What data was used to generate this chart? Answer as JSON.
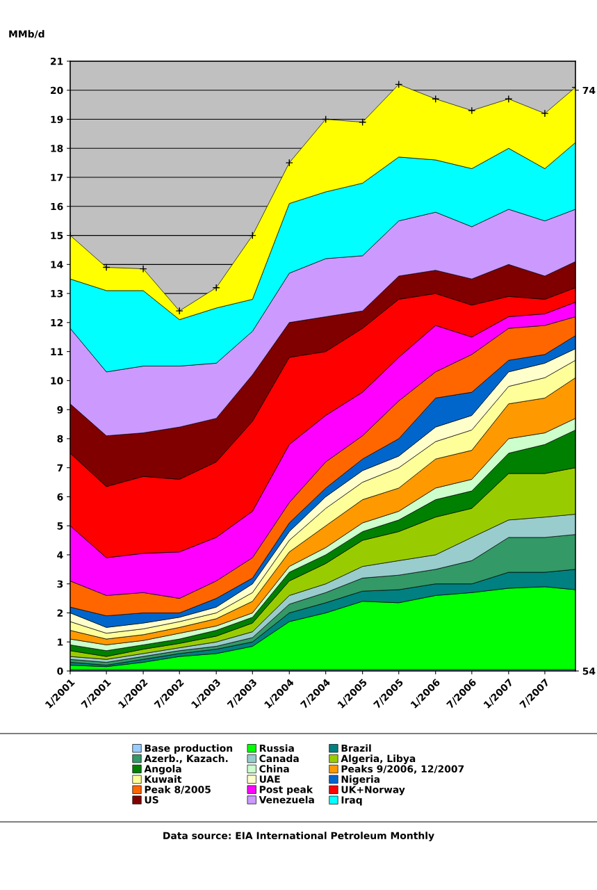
{
  "chart_data": {
    "type": "area",
    "stacked": true,
    "ylabel": "MMb/d",
    "x": [
      "2001-01",
      "2001-07",
      "2002-01",
      "2002-07",
      "2003-01",
      "2003-07",
      "2004-01",
      "2004-07",
      "2005-01",
      "2005-07",
      "2006-01",
      "2006-07",
      "2007-01",
      "2007-07",
      "2007-12"
    ],
    "xlim": [
      "2001-01",
      "2007-12"
    ],
    "xticks": [
      {
        "value": "2001-01",
        "label": "1/2001"
      },
      {
        "value": "2001-07",
        "label": "7/2001"
      },
      {
        "value": "2002-01",
        "label": "1/2002"
      },
      {
        "value": "2002-07",
        "label": "7/2002"
      },
      {
        "value": "2003-01",
        "label": "1/2003"
      },
      {
        "value": "2003-07",
        "label": "7/2003"
      },
      {
        "value": "2004-01",
        "label": "1/2004"
      },
      {
        "value": "2004-07",
        "label": "7/2004"
      },
      {
        "value": "2005-01",
        "label": "1/2005"
      },
      {
        "value": "2005-07",
        "label": "7/2005"
      },
      {
        "value": "2006-01",
        "label": "1/2006"
      },
      {
        "value": "2006-07",
        "label": "7/2006"
      },
      {
        "value": "2007-01",
        "label": "1/2007"
      },
      {
        "value": "2007-07",
        "label": "7/2007"
      }
    ],
    "ylim": [
      0,
      21
    ],
    "yticks": [
      0,
      1,
      2,
      3,
      4,
      5,
      6,
      7,
      8,
      9,
      10,
      11,
      12,
      13,
      14,
      15,
      16,
      17,
      18,
      19,
      20,
      21
    ],
    "y2lim": [
      54,
      75
    ],
    "y2ticks": [
      54,
      74
    ],
    "grid": "y",
    "legend": "bottom",
    "series": [
      {
        "name": "Base production",
        "color": "#99ccff",
        "values": [
          0.05,
          0.05,
          0.05,
          0.05,
          0.05,
          0.05,
          0.05,
          0.05,
          0.05,
          0.05,
          0.05,
          0.05,
          0.05,
          0.05,
          0.05
        ]
      },
      {
        "name": "Russia",
        "color": "#00ff00",
        "values": [
          0.15,
          0.1,
          0.25,
          0.45,
          0.55,
          0.8,
          1.65,
          1.95,
          2.35,
          2.3,
          2.55,
          2.65,
          2.8,
          2.85,
          2.75
        ]
      },
      {
        "name": "Brazil",
        "color": "#008080",
        "values": [
          0.1,
          0.05,
          0.1,
          0.1,
          0.15,
          0.15,
          0.3,
          0.35,
          0.35,
          0.45,
          0.4,
          0.3,
          0.55,
          0.5,
          0.7
        ]
      },
      {
        "name": "Azerb., Kazach.",
        "color": "#339966",
        "values": [
          0.1,
          0.1,
          0.1,
          0.1,
          0.1,
          0.15,
          0.3,
          0.35,
          0.45,
          0.5,
          0.5,
          0.8,
          1.2,
          1.2,
          1.2
        ]
      },
      {
        "name": "Canada",
        "color": "#99cccc",
        "values": [
          0.1,
          0.1,
          0.1,
          0.1,
          0.15,
          0.2,
          0.3,
          0.3,
          0.4,
          0.5,
          0.5,
          0.8,
          0.6,
          0.7,
          0.7
        ]
      },
      {
        "name": "Algeria, Libya",
        "color": "#99cc00",
        "values": [
          0.2,
          0.1,
          0.15,
          0.15,
          0.2,
          0.3,
          0.5,
          0.7,
          0.9,
          1.0,
          1.3,
          1.0,
          1.6,
          1.5,
          1.6
        ]
      },
      {
        "name": "Angola",
        "color": "#008000",
        "values": [
          0.2,
          0.2,
          0.15,
          0.15,
          0.2,
          0.2,
          0.3,
          0.3,
          0.3,
          0.4,
          0.6,
          0.6,
          0.7,
          1.0,
          1.3
        ]
      },
      {
        "name": "China",
        "color": "#ccffcc",
        "values": [
          0.2,
          0.2,
          0.15,
          0.2,
          0.15,
          0.15,
          0.2,
          0.25,
          0.3,
          0.3,
          0.4,
          0.4,
          0.5,
          0.4,
          0.4
        ]
      },
      {
        "name": "Peaks 9/2006, 12/2007",
        "color": "#ff9900",
        "values": [
          0.3,
          0.2,
          0.2,
          0.2,
          0.25,
          0.4,
          0.5,
          0.75,
          0.8,
          0.8,
          1.0,
          1.0,
          1.2,
          1.2,
          1.4
        ]
      },
      {
        "name": "Kuwait",
        "color": "#ffff99",
        "values": [
          0.3,
          0.2,
          0.2,
          0.2,
          0.2,
          0.3,
          0.4,
          0.6,
          0.6,
          0.7,
          0.6,
          0.7,
          0.6,
          0.7,
          0.6
        ]
      },
      {
        "name": "UAE",
        "color": "#ffffcc",
        "values": [
          0.3,
          0.2,
          0.2,
          0.15,
          0.2,
          0.3,
          0.3,
          0.4,
          0.4,
          0.4,
          0.5,
          0.5,
          0.5,
          0.5,
          0.4
        ]
      },
      {
        "name": "Nigeria",
        "color": "#0066cc",
        "values": [
          0.2,
          0.4,
          0.35,
          0.15,
          0.3,
          0.2,
          0.3,
          0.3,
          0.4,
          0.6,
          1.0,
          0.8,
          0.4,
          0.3,
          0.45
        ]
      },
      {
        "name": "Peak 8/2005",
        "color": "#ff6600",
        "values": [
          0.9,
          0.7,
          0.7,
          0.5,
          0.6,
          0.7,
          0.7,
          0.9,
          0.8,
          1.3,
          0.9,
          1.3,
          1.1,
          1.0,
          0.65
        ]
      },
      {
        "name": "Post peak",
        "color": "#ff00ff",
        "values": [
          1.9,
          1.3,
          1.35,
          1.6,
          1.5,
          1.6,
          2.0,
          1.6,
          1.5,
          1.5,
          1.6,
          0.6,
          0.4,
          0.4,
          0.5
        ]
      },
      {
        "name": "UK+Norway",
        "color": "#ff0000",
        "values": [
          2.5,
          2.45,
          2.65,
          2.5,
          2.6,
          3.1,
          3.0,
          2.2,
          2.2,
          2.0,
          1.1,
          1.1,
          0.7,
          0.5,
          0.5
        ]
      },
      {
        "name": "US",
        "color": "#800000",
        "values": [
          1.7,
          1.75,
          1.5,
          1.8,
          1.5,
          1.6,
          1.2,
          1.2,
          0.6,
          0.8,
          0.8,
          0.9,
          1.1,
          0.8,
          0.9
        ]
      },
      {
        "name": "Venezuela",
        "color": "#cc99ff",
        "values": [
          2.6,
          2.2,
          2.3,
          2.1,
          1.9,
          1.5,
          1.7,
          2.0,
          1.9,
          1.9,
          2.0,
          1.8,
          1.9,
          1.9,
          1.8
        ]
      },
      {
        "name": "Iraq",
        "color": "#00ffff",
        "values": [
          1.7,
          2.8,
          2.6,
          1.6,
          1.9,
          1.1,
          2.4,
          2.3,
          2.5,
          2.2,
          1.8,
          2.0,
          2.1,
          1.8,
          2.3
        ]
      },
      {
        "color": "#ffff00",
        "marker": "cross",
        "values": [
          1.5,
          0.8,
          0.75,
          0.3,
          0.7,
          2.2,
          1.4,
          2.5,
          2.1,
          2.5,
          2.1,
          2.0,
          1.7,
          1.9,
          1.9
        ]
      }
    ],
    "annotations": [
      "Data source: EIA International Petroleum Monthly"
    ]
  }
}
